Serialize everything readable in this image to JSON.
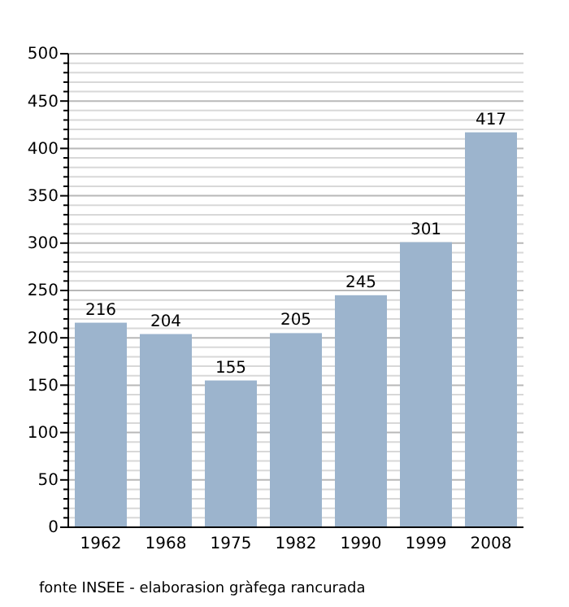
{
  "chart_data": {
    "type": "bar",
    "categories": [
      "1962",
      "1968",
      "1975",
      "1982",
      "1990",
      "1999",
      "2008"
    ],
    "values": [
      216,
      204,
      155,
      205,
      245,
      301,
      417
    ],
    "color": "#9cb4cd",
    "data_labels": true,
    "grid": "y",
    "ylim": [
      0,
      500
    ],
    "yticks": [
      0,
      {
        "value": 10,
        "label": null
      },
      {
        "value": 20,
        "label": null
      },
      {
        "value": 30,
        "label": null
      },
      {
        "value": 40,
        "label": null
      },
      50,
      {
        "value": 60,
        "label": null
      },
      {
        "value": 70,
        "label": null
      },
      {
        "value": 80,
        "label": null
      },
      {
        "value": 90,
        "label": null
      },
      100,
      {
        "value": 110,
        "label": null
      },
      {
        "value": 120,
        "label": null
      },
      {
        "value": 130,
        "label": null
      },
      {
        "value": 140,
        "label": null
      },
      150,
      {
        "value": 160,
        "label": null
      },
      {
        "value": 170,
        "label": null
      },
      {
        "value": 180,
        "label": null
      },
      {
        "value": 190,
        "label": null
      },
      200,
      {
        "value": 210,
        "label": null
      },
      {
        "value": 220,
        "label": null
      },
      {
        "value": 230,
        "label": null
      },
      {
        "value": 240,
        "label": null
      },
      250,
      {
        "value": 260,
        "label": null
      },
      {
        "value": 270,
        "label": null
      },
      {
        "value": 280,
        "label": null
      },
      {
        "value": 290,
        "label": null
      },
      300,
      {
        "value": 310,
        "label": null
      },
      {
        "value": 320,
        "label": null
      },
      {
        "value": 330,
        "label": null
      },
      {
        "value": 340,
        "label": null
      },
      350,
      {
        "value": 360,
        "label": null
      },
      {
        "value": 370,
        "label": null
      },
      {
        "value": 380,
        "label": null
      },
      {
        "value": 390,
        "label": null
      },
      400,
      {
        "value": 410,
        "label": null
      },
      {
        "value": 420,
        "label": null
      },
      {
        "value": 430,
        "label": null
      },
      {
        "value": 440,
        "label": null
      },
      450,
      {
        "value": 460,
        "label": null
      },
      {
        "value": 470,
        "label": null
      },
      {
        "value": 480,
        "label": null
      },
      {
        "value": 490,
        "label": null
      },
      500
    ],
    "annotations": [
      "fonte INSEE - elaborasion gràfega rancurada"
    ]
  }
}
